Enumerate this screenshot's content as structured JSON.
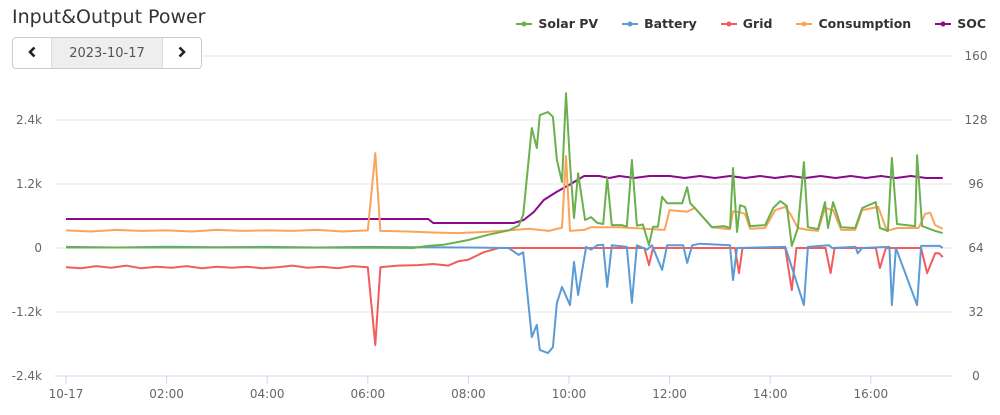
{
  "header": {
    "title": "Input&Output Power"
  },
  "date_nav": {
    "prev_icon": "chevron-left-icon",
    "prev_glyph": "‹",
    "date": "2023-10-17",
    "next_icon": "chevron-right-icon",
    "next_glyph": "›"
  },
  "chart_data": {
    "type": "line",
    "title": "Input&Output Power",
    "x_unit": "hours since 00:00",
    "x_ticks": [
      {
        "h": 0,
        "label": "10-17"
      },
      {
        "h": 2,
        "label": "02:00"
      },
      {
        "h": 4,
        "label": "04:00"
      },
      {
        "h": 6,
        "label": "06:00"
      },
      {
        "h": 8,
        "label": "08:00"
      },
      {
        "h": 10,
        "label": "10:00"
      },
      {
        "h": 12,
        "label": "12:00"
      },
      {
        "h": 14,
        "label": "14:00"
      },
      {
        "h": 16,
        "label": "16:00"
      }
    ],
    "xlim": [
      0,
      18
    ],
    "y_left": {
      "ylim": [
        -2400,
        3600
      ],
      "ticks": [
        {
          "v": 2400,
          "label": "2.4k"
        },
        {
          "v": 1200,
          "label": "1.2k"
        },
        {
          "v": 0,
          "label": "0"
        },
        {
          "v": -1200,
          "label": "-1.2k"
        },
        {
          "v": -2400,
          "label": "-2.4k"
        }
      ],
      "gridlines": [
        -2400,
        -1200,
        0,
        1200,
        2400,
        3600
      ]
    },
    "y_right": {
      "ylim": [
        0,
        160
      ],
      "ticks": [
        {
          "v": 160,
          "label": "160"
        },
        {
          "v": 128,
          "label": "128"
        },
        {
          "v": 96,
          "label": "96"
        },
        {
          "v": 64,
          "label": "64"
        },
        {
          "v": 32,
          "label": "32"
        },
        {
          "v": 0,
          "label": "0"
        }
      ]
    },
    "legend_position": "top-right",
    "series": [
      {
        "name": "Solar PV",
        "color": "#6ab04c",
        "axis": "left",
        "points": [
          [
            0,
            10
          ],
          [
            3,
            10
          ],
          [
            6,
            5
          ],
          [
            6.9,
            0
          ],
          [
            7.2,
            40
          ],
          [
            7.5,
            60
          ],
          [
            8,
            150
          ],
          [
            8.4,
            250
          ],
          [
            8.8,
            330
          ],
          [
            9.0,
            420
          ],
          [
            9.09,
            620
          ],
          [
            9.26,
            2250
          ],
          [
            9.36,
            1875
          ],
          [
            9.42,
            2490
          ],
          [
            9.58,
            2550
          ],
          [
            9.68,
            2460
          ],
          [
            9.76,
            1650
          ],
          [
            9.86,
            1240
          ],
          [
            9.94,
            2900
          ],
          [
            10.02,
            1590
          ],
          [
            10.1,
            560
          ],
          [
            10.18,
            1400
          ],
          [
            10.32,
            525
          ],
          [
            10.44,
            580
          ],
          [
            10.56,
            470
          ],
          [
            10.68,
            450
          ],
          [
            10.76,
            1310
          ],
          [
            10.85,
            430
          ],
          [
            11.05,
            430
          ],
          [
            11.15,
            400
          ],
          [
            11.25,
            1650
          ],
          [
            11.35,
            420
          ],
          [
            11.47,
            440
          ],
          [
            11.59,
            55
          ],
          [
            11.67,
            400
          ],
          [
            11.77,
            400
          ],
          [
            11.85,
            960
          ],
          [
            11.95,
            840
          ],
          [
            12.25,
            840
          ],
          [
            12.35,
            1140
          ],
          [
            12.41,
            840
          ],
          [
            12.5,
            750
          ],
          [
            12.84,
            390
          ],
          [
            13.08,
            410
          ],
          [
            13.2,
            375
          ],
          [
            13.26,
            1500
          ],
          [
            13.34,
            300
          ],
          [
            13.4,
            800
          ],
          [
            13.5,
            770
          ],
          [
            13.6,
            410
          ],
          [
            13.9,
            430
          ],
          [
            14.06,
            750
          ],
          [
            14.2,
            880
          ],
          [
            14.33,
            790
          ],
          [
            14.43,
            40
          ],
          [
            14.55,
            375
          ],
          [
            14.67,
            1610
          ],
          [
            14.75,
            390
          ],
          [
            14.95,
            355
          ],
          [
            15.09,
            860
          ],
          [
            15.15,
            375
          ],
          [
            15.25,
            860
          ],
          [
            15.41,
            390
          ],
          [
            15.69,
            375
          ],
          [
            15.83,
            750
          ],
          [
            16.1,
            860
          ],
          [
            16.18,
            375
          ],
          [
            16.34,
            320
          ],
          [
            16.42,
            1690
          ],
          [
            16.52,
            450
          ],
          [
            16.88,
            410
          ],
          [
            16.92,
            1740
          ],
          [
            17.02,
            410
          ],
          [
            17.28,
            320
          ],
          [
            17.43,
            280
          ]
        ]
      },
      {
        "name": "Battery",
        "color": "#5b9bd5",
        "axis": "left",
        "points": [
          [
            0,
            20
          ],
          [
            1,
            10
          ],
          [
            2,
            25
          ],
          [
            3,
            15
          ],
          [
            4,
            20
          ],
          [
            5,
            10
          ],
          [
            6,
            20
          ],
          [
            7,
            15
          ],
          [
            8,
            10
          ],
          [
            8.8,
            0
          ],
          [
            9.0,
            -130
          ],
          [
            9.09,
            -80
          ],
          [
            9.26,
            -1670
          ],
          [
            9.36,
            -1440
          ],
          [
            9.42,
            -1910
          ],
          [
            9.58,
            -1970
          ],
          [
            9.68,
            -1860
          ],
          [
            9.76,
            -1030
          ],
          [
            9.86,
            -730
          ],
          [
            10.02,
            -1070
          ],
          [
            10.1,
            -260
          ],
          [
            10.18,
            -880
          ],
          [
            10.34,
            20
          ],
          [
            10.44,
            -30
          ],
          [
            10.56,
            50
          ],
          [
            10.68,
            60
          ],
          [
            10.76,
            -730
          ],
          [
            10.85,
            50
          ],
          [
            11.15,
            20
          ],
          [
            11.25,
            -1030
          ],
          [
            11.35,
            50
          ],
          [
            11.55,
            -30
          ],
          [
            11.65,
            50
          ],
          [
            11.85,
            -410
          ],
          [
            11.95,
            50
          ],
          [
            12.27,
            50
          ],
          [
            12.35,
            -280
          ],
          [
            12.45,
            50
          ],
          [
            12.6,
            80
          ],
          [
            13.2,
            50
          ],
          [
            13.26,
            -600
          ],
          [
            13.34,
            0
          ],
          [
            14.3,
            20
          ],
          [
            14.67,
            -1070
          ],
          [
            14.75,
            20
          ],
          [
            15.17,
            50
          ],
          [
            15.23,
            0
          ],
          [
            15.7,
            20
          ],
          [
            15.74,
            -100
          ],
          [
            15.83,
            0
          ],
          [
            16.37,
            20
          ],
          [
            16.42,
            -1070
          ],
          [
            16.5,
            0
          ],
          [
            16.92,
            -1070
          ],
          [
            17.0,
            40
          ],
          [
            17.37,
            40
          ],
          [
            17.43,
            0
          ]
        ]
      },
      {
        "name": "Grid",
        "color": "#f25c5c",
        "axis": "left",
        "points": [
          [
            0,
            -360
          ],
          [
            0.3,
            -380
          ],
          [
            0.6,
            -340
          ],
          [
            0.9,
            -370
          ],
          [
            1.2,
            -330
          ],
          [
            1.5,
            -380
          ],
          [
            1.8,
            -350
          ],
          [
            2.1,
            -370
          ],
          [
            2.4,
            -340
          ],
          [
            2.7,
            -380
          ],
          [
            3.0,
            -350
          ],
          [
            3.3,
            -370
          ],
          [
            3.6,
            -350
          ],
          [
            3.9,
            -380
          ],
          [
            4.2,
            -360
          ],
          [
            4.5,
            -330
          ],
          [
            4.8,
            -370
          ],
          [
            5.1,
            -350
          ],
          [
            5.4,
            -380
          ],
          [
            5.7,
            -340
          ],
          [
            6.0,
            -360
          ],
          [
            6.15,
            -1820
          ],
          [
            6.25,
            -360
          ],
          [
            6.6,
            -330
          ],
          [
            7.0,
            -320
          ],
          [
            7.3,
            -300
          ],
          [
            7.6,
            -330
          ],
          [
            7.8,
            -250
          ],
          [
            8.0,
            -220
          ],
          [
            8.3,
            -80
          ],
          [
            8.6,
            0
          ],
          [
            11.5,
            0
          ],
          [
            11.59,
            -320
          ],
          [
            11.67,
            0
          ],
          [
            13.3,
            0
          ],
          [
            13.38,
            -470
          ],
          [
            13.45,
            0
          ],
          [
            14.3,
            0
          ],
          [
            14.43,
            -790
          ],
          [
            14.52,
            0
          ],
          [
            15.1,
            0
          ],
          [
            15.2,
            -470
          ],
          [
            15.28,
            0
          ],
          [
            16.1,
            0
          ],
          [
            16.18,
            -375
          ],
          [
            16.3,
            0
          ],
          [
            17.0,
            0
          ],
          [
            17.12,
            -470
          ],
          [
            17.28,
            -100
          ],
          [
            17.36,
            -100
          ],
          [
            17.43,
            -170
          ]
        ]
      },
      {
        "name": "Consumption",
        "color": "#f9a35b",
        "axis": "left",
        "points": [
          [
            0,
            330
          ],
          [
            0.5,
            310
          ],
          [
            1,
            340
          ],
          [
            1.5,
            320
          ],
          [
            2,
            330
          ],
          [
            2.5,
            310
          ],
          [
            3,
            340
          ],
          [
            3.5,
            320
          ],
          [
            4,
            330
          ],
          [
            4.5,
            320
          ],
          [
            5,
            340
          ],
          [
            5.5,
            310
          ],
          [
            6,
            330
          ],
          [
            6.15,
            1780
          ],
          [
            6.25,
            320
          ],
          [
            6.8,
            310
          ],
          [
            7.3,
            290
          ],
          [
            7.8,
            280
          ],
          [
            8.3,
            300
          ],
          [
            8.8,
            330
          ],
          [
            9.2,
            360
          ],
          [
            9.6,
            320
          ],
          [
            9.86,
            380
          ],
          [
            9.94,
            1720
          ],
          [
            10.02,
            320
          ],
          [
            10.3,
            340
          ],
          [
            10.44,
            390
          ],
          [
            11.0,
            390
          ],
          [
            11.9,
            340
          ],
          [
            12.0,
            710
          ],
          [
            12.35,
            680
          ],
          [
            12.5,
            750
          ],
          [
            12.84,
            390
          ],
          [
            13.2,
            350
          ],
          [
            13.26,
            690
          ],
          [
            13.4,
            670
          ],
          [
            13.5,
            640
          ],
          [
            13.6,
            360
          ],
          [
            13.9,
            375
          ],
          [
            14.1,
            710
          ],
          [
            14.3,
            770
          ],
          [
            14.4,
            640
          ],
          [
            14.55,
            375
          ],
          [
            14.75,
            340
          ],
          [
            14.95,
            320
          ],
          [
            15.09,
            750
          ],
          [
            15.25,
            710
          ],
          [
            15.41,
            340
          ],
          [
            15.69,
            340
          ],
          [
            15.83,
            710
          ],
          [
            16.15,
            770
          ],
          [
            16.32,
            320
          ],
          [
            16.52,
            375
          ],
          [
            16.95,
            375
          ],
          [
            17.08,
            640
          ],
          [
            17.18,
            660
          ],
          [
            17.28,
            430
          ],
          [
            17.43,
            360
          ]
        ]
      },
      {
        "name": "SOC",
        "color": "#8b0a8b",
        "axis": "right",
        "points": [
          [
            0,
            78.5
          ],
          [
            7.2,
            78.5
          ],
          [
            7.3,
            76.5
          ],
          [
            8.9,
            76.5
          ],
          [
            9.1,
            78
          ],
          [
            9.3,
            82
          ],
          [
            9.5,
            88
          ],
          [
            9.75,
            92
          ],
          [
            10.0,
            95.5
          ],
          [
            10.3,
            100
          ],
          [
            10.6,
            100
          ],
          [
            10.8,
            99
          ],
          [
            11.0,
            100
          ],
          [
            11.3,
            99
          ],
          [
            11.6,
            100
          ],
          [
            12.0,
            100
          ],
          [
            12.3,
            99
          ],
          [
            12.6,
            100
          ],
          [
            12.9,
            99
          ],
          [
            13.2,
            100
          ],
          [
            13.5,
            99
          ],
          [
            13.8,
            100
          ],
          [
            14.1,
            99
          ],
          [
            14.4,
            100
          ],
          [
            14.7,
            99
          ],
          [
            15.0,
            100
          ],
          [
            15.3,
            99
          ],
          [
            15.6,
            100
          ],
          [
            15.9,
            99
          ],
          [
            16.2,
            100
          ],
          [
            16.5,
            99
          ],
          [
            16.8,
            100
          ],
          [
            17.1,
            99
          ],
          [
            17.43,
            99
          ]
        ]
      }
    ]
  }
}
